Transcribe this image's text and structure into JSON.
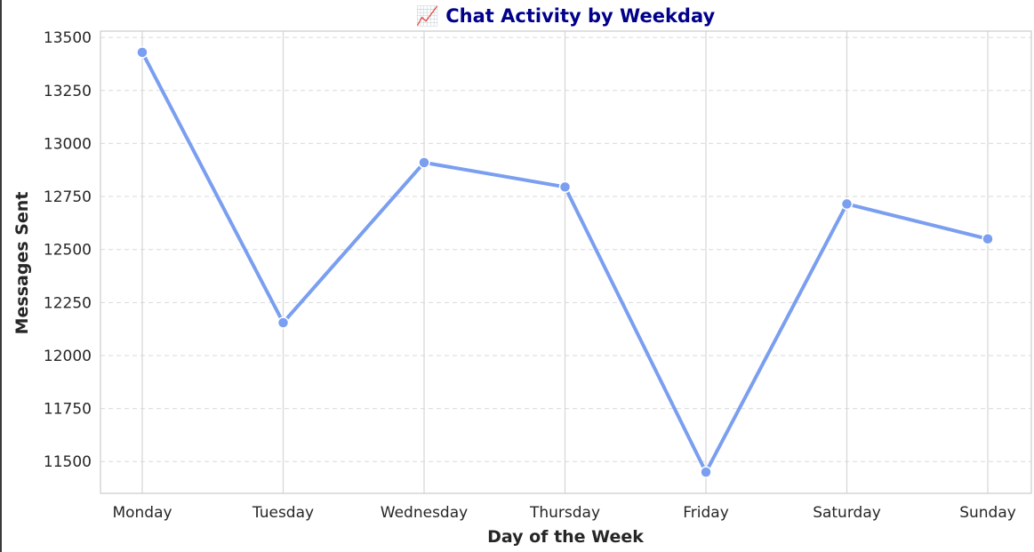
{
  "chart_data": {
    "type": "line",
    "title": "📈 Chat Activity by Weekday",
    "xlabel": "Day of the Week",
    "ylabel": "Messages Sent",
    "categories": [
      "Monday",
      "Tuesday",
      "Wednesday",
      "Thursday",
      "Friday",
      "Saturday",
      "Sunday"
    ],
    "series": [
      {
        "values": [
          13430,
          12155,
          12910,
          12795,
          11450,
          12715,
          12550
        ]
      }
    ],
    "ylim": [
      11350,
      13530
    ],
    "yticks": [
      11500,
      11750,
      12000,
      12250,
      12500,
      12750,
      13000,
      13250,
      13500
    ],
    "grid": true,
    "colors": {
      "line": "#7a9ef0",
      "title": "#00008b"
    }
  }
}
